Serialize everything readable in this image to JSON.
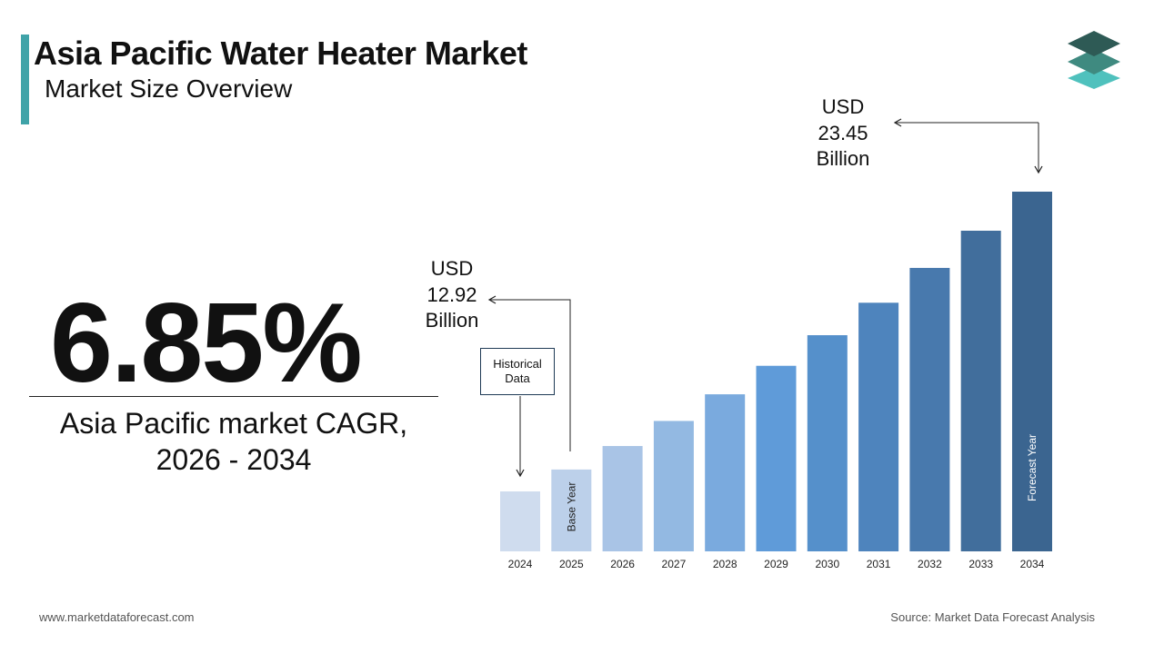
{
  "header": {
    "title": "Asia Pacific Water Heater Market",
    "subtitle": "Market Size Overview"
  },
  "logo": {
    "icon": "stacked-layers-icon",
    "colors": [
      "#2e5a55",
      "#3f8a80",
      "#4fc1bd"
    ]
  },
  "cagr": {
    "value": "6.85%",
    "label_line1": "Asia Pacific market CAGR,",
    "label_line2": "2026 - 2034"
  },
  "callouts": {
    "start": {
      "line1": "USD",
      "line2": "12.92",
      "line3": "Billion"
    },
    "end": {
      "line1": "USD",
      "line2": "23.45",
      "line3": "Billion"
    }
  },
  "historical_box": {
    "line1": "Historical",
    "line2": "Data"
  },
  "bar_labels": {
    "base_year": "Base Year",
    "forecast_year": "Forecast Year"
  },
  "footer": {
    "website": "www.marketdataforecast.com",
    "source": "Source: Market Data Forecast Analysis"
  },
  "chart_data": {
    "type": "bar",
    "categories": [
      "2024",
      "2025",
      "2026",
      "2027",
      "2028",
      "2029",
      "2030",
      "2031",
      "2032",
      "2033",
      "2034"
    ],
    "values": [
      12.09,
      12.92,
      13.81,
      14.76,
      15.77,
      16.85,
      18.01,
      19.24,
      20.56,
      21.97,
      23.45
    ],
    "unit": "USD Billion",
    "colors": [
      "#cfdcee",
      "#bcd0ea",
      "#a9c4e6",
      "#93b9e2",
      "#7aaade",
      "#5f9bd9",
      "#5590cb",
      "#4e84bd",
      "#4879ad",
      "#416e9c",
      "#3b6590"
    ]
  }
}
